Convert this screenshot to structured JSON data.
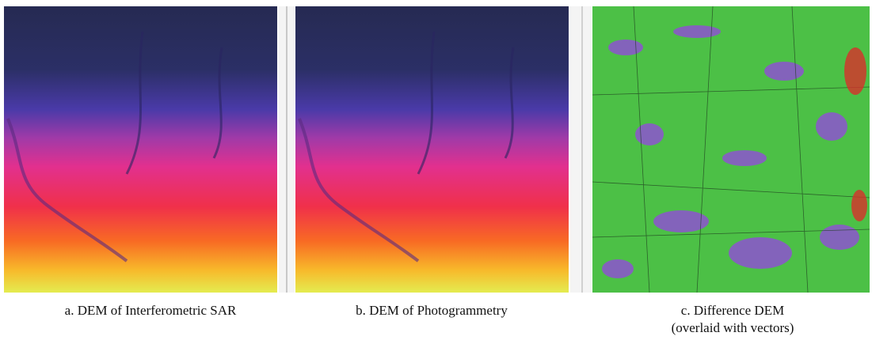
{
  "figure": {
    "panels": [
      {
        "caption": [
          "a. DEM of Interferometric SAR"
        ]
      },
      {
        "caption": [
          "b. DEM of Photogrammetry"
        ]
      },
      {
        "caption": [
          "c. Difference DEM",
          "(overlaid with vectors)"
        ]
      }
    ]
  }
}
